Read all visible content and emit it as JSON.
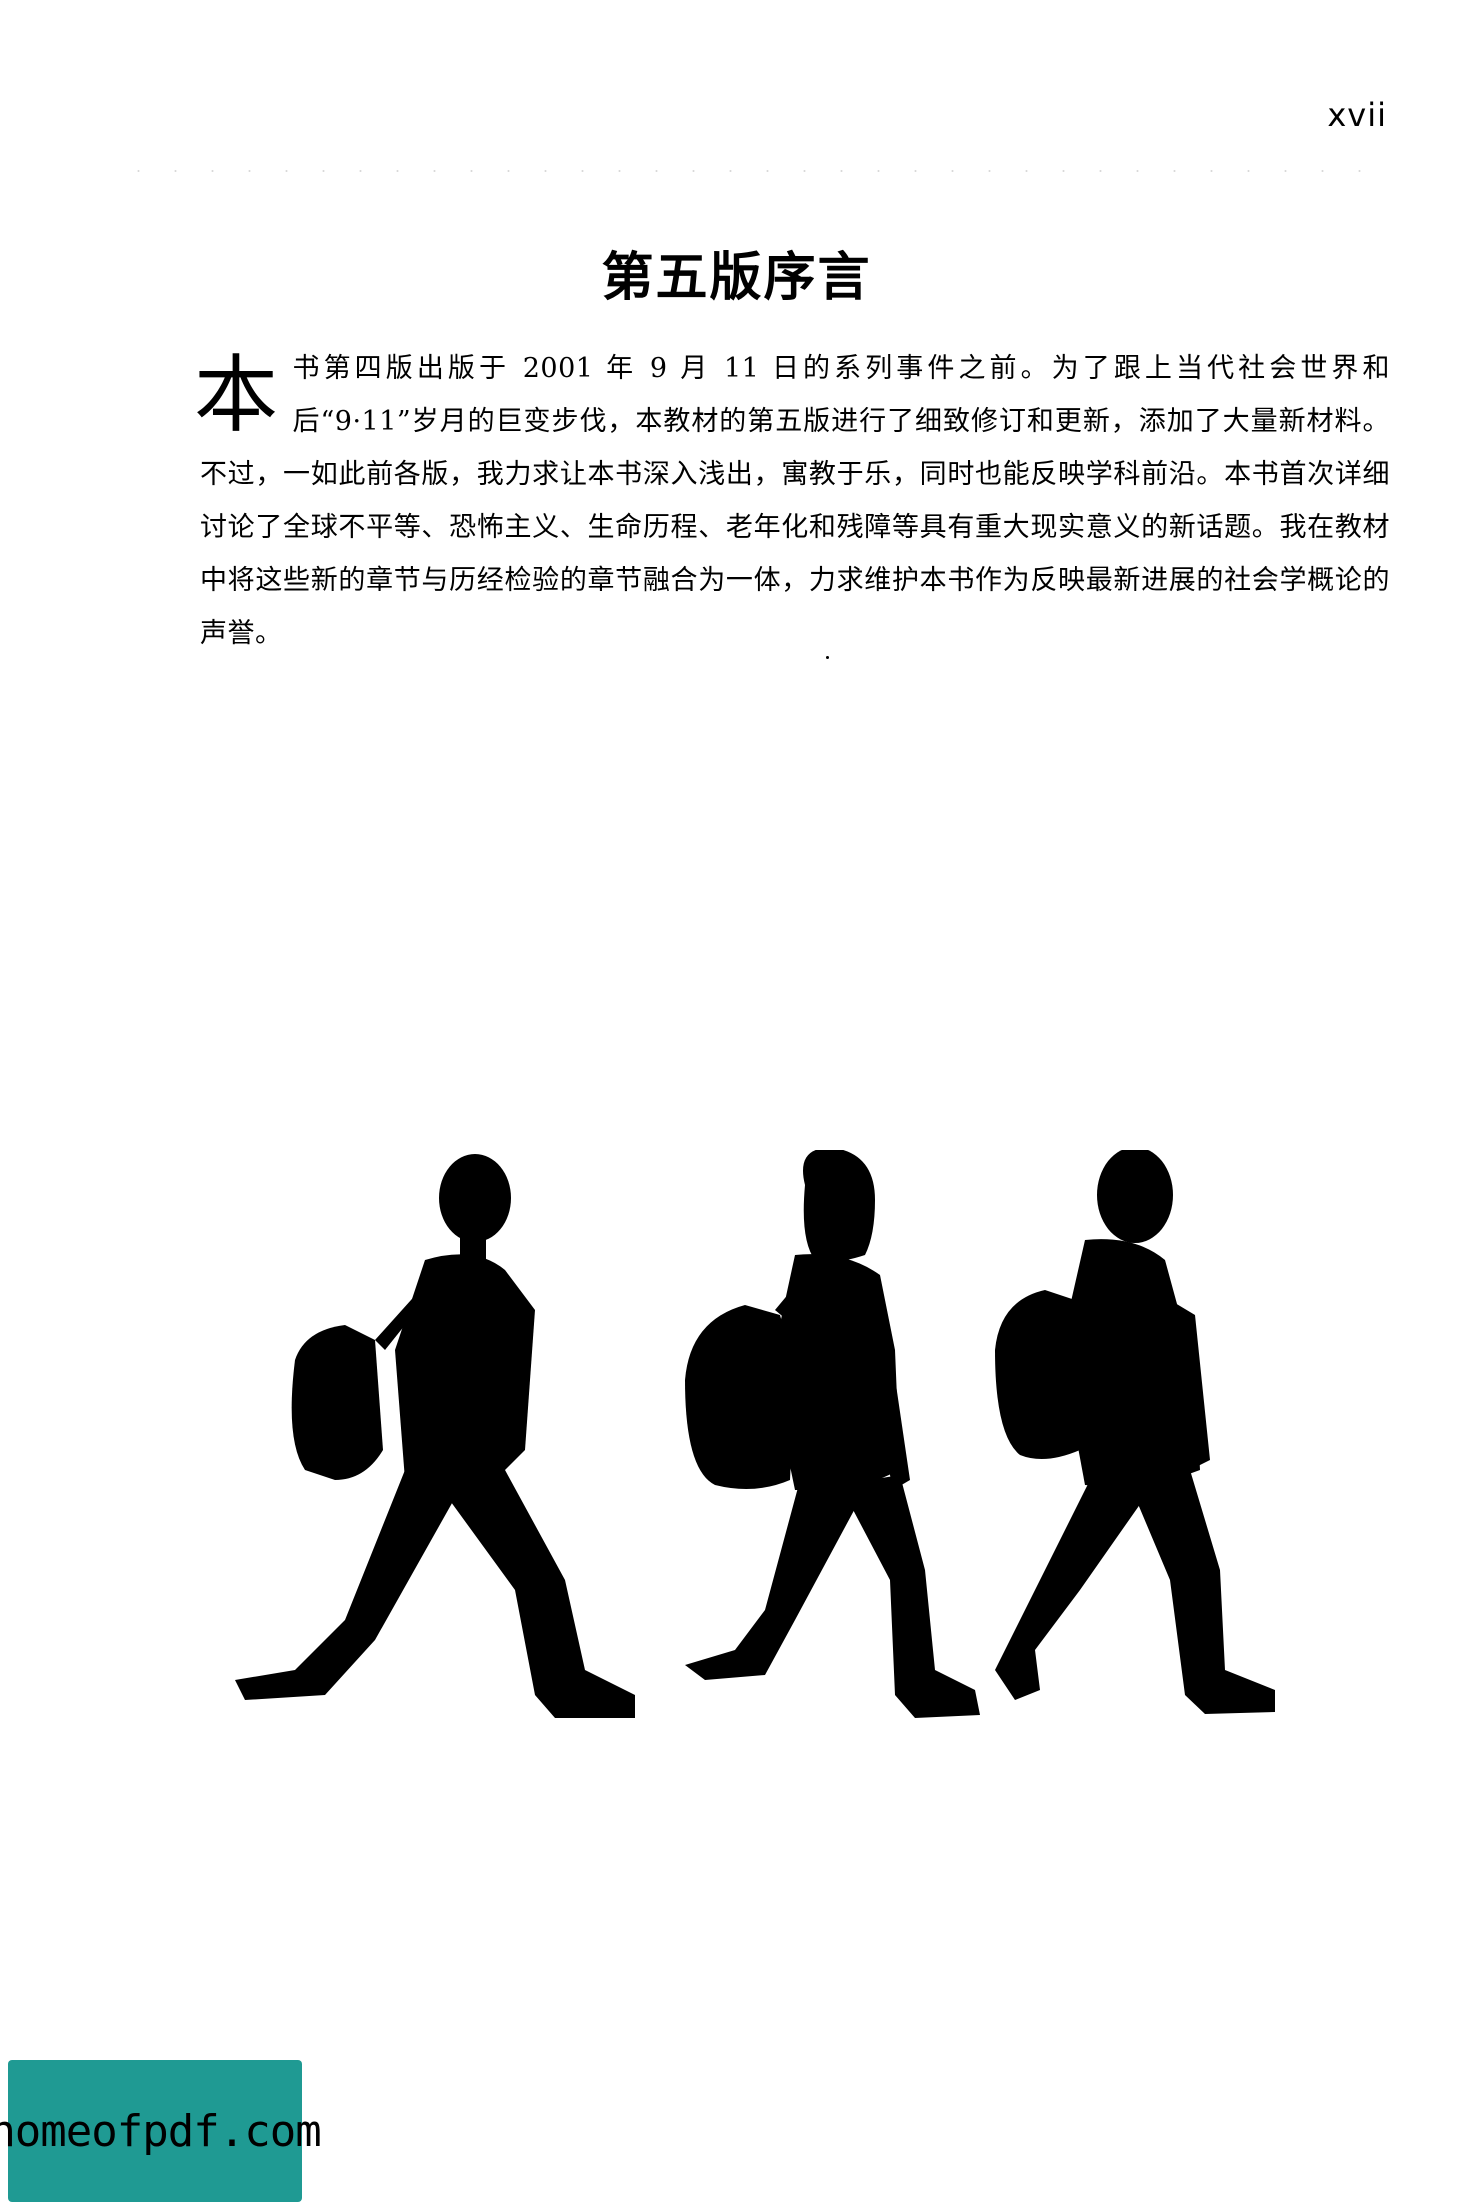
{
  "page": {
    "number": "xvii",
    "title": "第五版序言"
  },
  "preface": {
    "drop_cap": "本",
    "body": "书第四版出版于 2001 年 9 月 11 日的系列事件之前。为了跟上当代社会世界和后“9·11”岁月的巨变步伐，本教材的第五版进行了细致修订和更新，添加了大量新材料。不过，一如此前各版，我力求让本书深入浅出，寓教于乐，同时也能反映学科前沿。本书首次详细讨论了全球不平等、恐怖主义、生命历程、老年化和残障等具有重大现实意义的新话题。我在教材中将这些新的章节与历经检验的章节融合为一体，力求维护本书作为反映最新进展的社会学概论的声誉。"
  },
  "illustration": {
    "icon": "walking-students-silhouettes-icon",
    "fill_color": "#000000"
  },
  "watermark": {
    "text": "homeofpdf.com",
    "background_color": "#1f9a93"
  }
}
